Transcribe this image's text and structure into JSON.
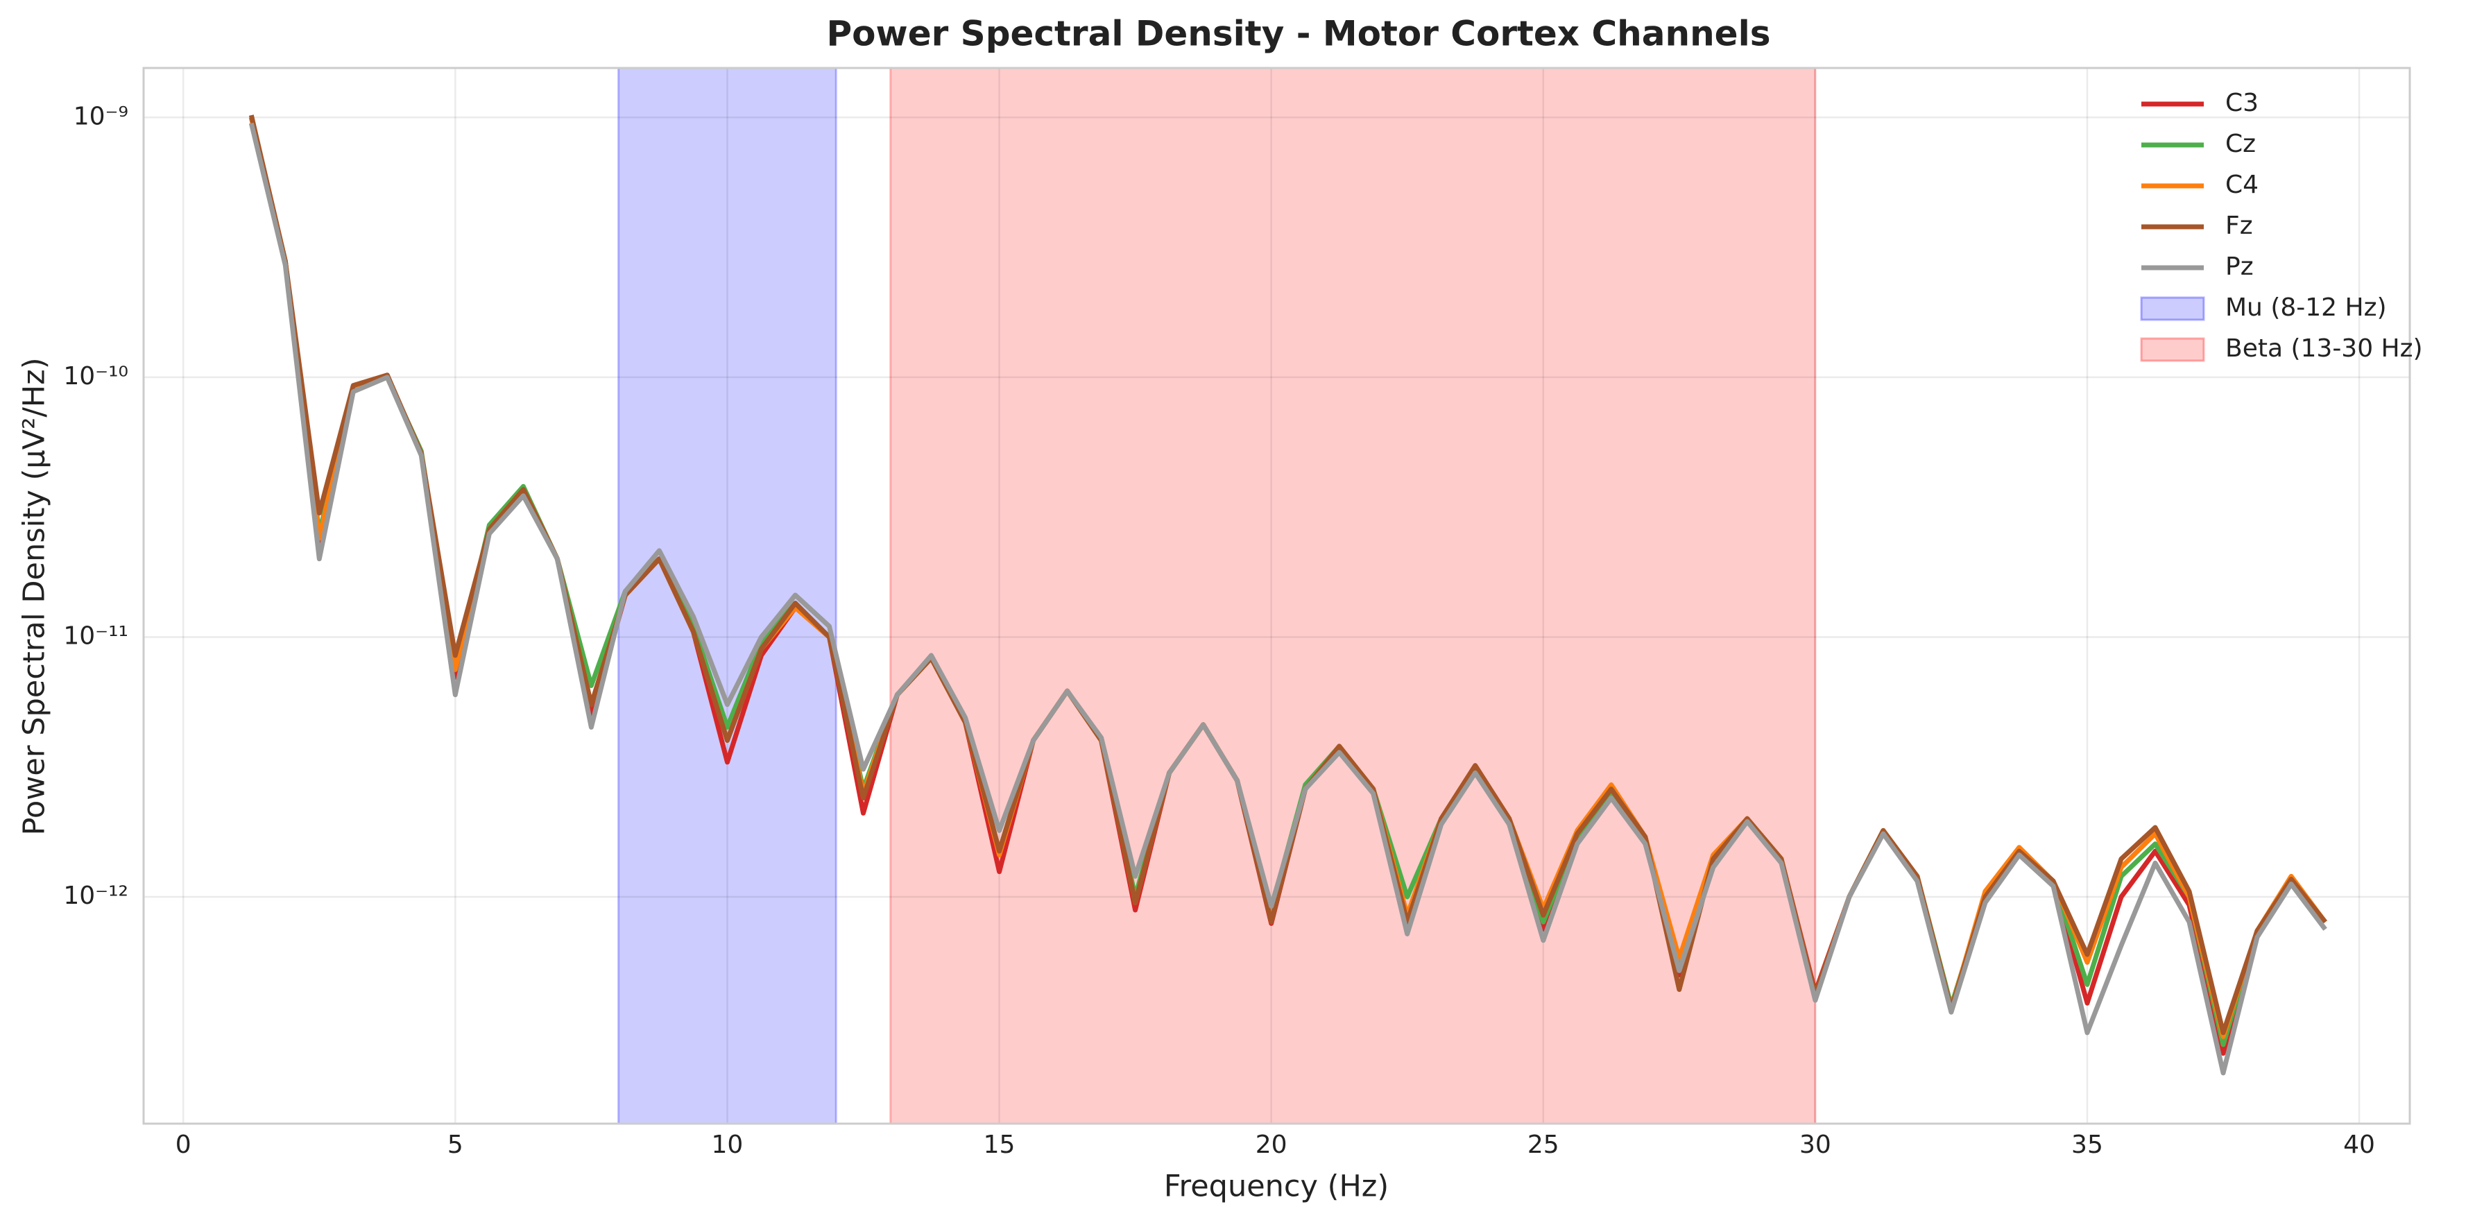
{
  "chart_data": {
    "type": "line",
    "title": "Power Spectral Density - Motor Cortex Channels",
    "xlabel": "Frequency (Hz)",
    "ylabel": "Power Spectral Density (µV²/Hz)",
    "log_y": true,
    "grid": true,
    "legend": "upper right",
    "xlim": [
      -0.73,
      40.93
    ],
    "ylim": [
      1.34e-13,
      1.55e-09
    ],
    "xticks": [
      0,
      5,
      10,
      15,
      20,
      25,
      30,
      35,
      40
    ],
    "yticks": [
      {
        "value": 1e-12,
        "label": "10⁻¹²"
      },
      {
        "value": 1e-11,
        "label": "10⁻¹¹"
      },
      {
        "value": 1e-10,
        "label": "10⁻¹⁰"
      },
      {
        "value": 1e-09,
        "label": "10⁻⁹"
      }
    ],
    "x": [
      1.25,
      1.875,
      2.5,
      3.125,
      3.75,
      4.375,
      5,
      5.625,
      6.25,
      6.875,
      7.5,
      8.125,
      8.75,
      9.375,
      10,
      10.625,
      11.25,
      11.875,
      12.5,
      13.125,
      13.75,
      14.375,
      15,
      15.625,
      16.25,
      16.875,
      17.5,
      18.125,
      18.75,
      19.375,
      20,
      20.625,
      21.25,
      21.875,
      22.5,
      23.125,
      23.75,
      24.375,
      25,
      25.625,
      26.25,
      26.875,
      27.5,
      28.125,
      28.75,
      29.375,
      30,
      30.625,
      31.25,
      31.875,
      32.5,
      33.125,
      33.75,
      34.375,
      35,
      35.625,
      36.25,
      36.875,
      37.5,
      38.125,
      38.75,
      39.375
    ],
    "series": [
      {
        "name": "C3",
        "color": "#d62728",
        "values": [
          1e-09,
          2.8e-10,
          2.1e-11,
          9.1e-11,
          1e-10,
          5.1e-11,
          7e-12,
          2.6e-11,
          3.7e-11,
          2e-11,
          5e-12,
          1.45e-11,
          2e-11,
          1.05e-11,
          3.3e-12,
          8.5e-12,
          1.3e-11,
          1e-11,
          2.1e-12,
          6e-12,
          8.3e-12,
          4.7e-12,
          1.25e-12,
          4e-12,
          6.2e-12,
          4e-12,
          8.9e-13,
          3e-12,
          4.6e-12,
          2.8e-12,
          7.9e-13,
          2.6e-12,
          3.8e-12,
          2.6e-12,
          8e-13,
          2e-12,
          3.2e-12,
          2e-12,
          7.5e-13,
          1.7e-12,
          2.6e-12,
          1.7e-12,
          5e-13,
          1.4e-12,
          2e-12,
          1.4e-12,
          4.3e-13,
          1e-12,
          1.8e-12,
          1.2e-12,
          3.7e-13,
          1e-12,
          1.5e-12,
          1.15e-12,
          3.9e-13,
          1e-12,
          1.5e-12,
          9.3e-13,
          2.5e-13,
          7.4e-13,
          1.17e-12,
          8e-13
        ]
      },
      {
        "name": "Cz",
        "color": "#4daf4a",
        "values": [
          1e-09,
          2.8e-10,
          2.5e-11,
          9.1e-11,
          1e-10,
          5.2e-11,
          7.5e-12,
          2.7e-11,
          3.8e-11,
          2e-11,
          6.5e-12,
          1.5e-11,
          2e-11,
          1.1e-11,
          4.5e-12,
          9.5e-12,
          1.35e-11,
          1e-11,
          2.6e-12,
          6e-12,
          8.3e-12,
          4.7e-12,
          1.5e-12,
          4e-12,
          6.2e-12,
          4e-12,
          1e-12,
          3e-12,
          4.6e-12,
          2.8e-12,
          9e-13,
          2.7e-12,
          3.8e-12,
          2.6e-12,
          1e-12,
          2e-12,
          3.1e-12,
          2e-12,
          8e-13,
          1.7e-12,
          2.5e-12,
          1.7e-12,
          5.5e-13,
          1.4e-12,
          2e-12,
          1.4e-12,
          4.1e-13,
          1e-12,
          1.8e-12,
          1.2e-12,
          3.8e-13,
          1e-12,
          1.5e-12,
          1.15e-12,
          4.6e-13,
          1.2e-12,
          1.6e-12,
          1e-12,
          2.7e-13,
          7.4e-13,
          1.17e-12,
          8e-13
        ]
      },
      {
        "name": "C4",
        "color": "#ff7f0e",
        "values": [
          1e-09,
          2.8e-10,
          2.4e-11,
          9.1e-11,
          1e-10,
          5.1e-11,
          7.5e-12,
          2.6e-11,
          3.7e-11,
          2e-11,
          5.5e-12,
          1.45e-11,
          2e-11,
          1.05e-11,
          4e-12,
          9e-12,
          1.3e-11,
          1e-11,
          2.5e-12,
          6e-12,
          8.3e-12,
          4.7e-12,
          1.45e-12,
          4e-12,
          6.2e-12,
          4e-12,
          9.5e-13,
          3e-12,
          4.6e-12,
          2.8e-12,
          8.5e-13,
          2.6e-12,
          3.8e-12,
          2.6e-12,
          8.5e-13,
          2e-12,
          3.2e-12,
          2e-12,
          9e-13,
          1.8e-12,
          2.7e-12,
          1.7e-12,
          5.8e-13,
          1.45e-12,
          2e-12,
          1.4e-12,
          4.2e-13,
          1e-12,
          1.8e-12,
          1.2e-12,
          3.7e-13,
          1.05e-12,
          1.55e-12,
          1.15e-12,
          5.6e-13,
          1.3e-12,
          1.75e-12,
          1e-12,
          2.9e-13,
          7.4e-13,
          1.2e-12,
          8e-13
        ]
      },
      {
        "name": "Fz",
        "color": "#a65628",
        "values": [
          1.02e-09,
          2.8e-10,
          3e-11,
          9.3e-11,
          1.02e-10,
          5.1e-11,
          8.5e-12,
          2.6e-11,
          3.7e-11,
          2e-11,
          5.5e-12,
          1.45e-11,
          2e-11,
          1.05e-11,
          4e-12,
          9e-12,
          1.35e-11,
          1e-11,
          2.4e-12,
          6e-12,
          8.3e-12,
          4.7e-12,
          1.5e-12,
          4e-12,
          6.2e-12,
          4e-12,
          9.5e-13,
          3e-12,
          4.6e-12,
          2.8e-12,
          8e-13,
          2.6e-12,
          3.8e-12,
          2.6e-12,
          8e-13,
          2e-12,
          3.2e-12,
          2e-12,
          8.5e-13,
          1.75e-12,
          2.6e-12,
          1.7e-12,
          4.4e-13,
          1.4e-12,
          2e-12,
          1.4e-12,
          4.2e-13,
          1e-12,
          1.8e-12,
          1.2e-12,
          3.7e-13,
          1e-12,
          1.5e-12,
          1.15e-12,
          6e-13,
          1.4e-12,
          1.85e-12,
          1.05e-12,
          3e-13,
          7.4e-13,
          1.17e-12,
          8e-13
        ]
      },
      {
        "name": "Pz",
        "color": "#999999",
        "values": [
          9.5e-10,
          2.7e-10,
          2e-11,
          8.8e-11,
          1e-10,
          5e-11,
          6e-12,
          2.5e-11,
          3.5e-11,
          2e-11,
          4.5e-12,
          1.5e-11,
          2.15e-11,
          1.2e-11,
          5.5e-12,
          1e-11,
          1.45e-11,
          1.1e-11,
          3.1e-12,
          6e-12,
          8.5e-12,
          4.9e-12,
          1.8e-12,
          4e-12,
          6.2e-12,
          4.1e-12,
          1.2e-12,
          3e-12,
          4.6e-12,
          2.8e-12,
          9.2e-13,
          2.6e-12,
          3.6e-12,
          2.5e-12,
          7.2e-13,
          1.9e-12,
          3e-12,
          1.9e-12,
          6.8e-13,
          1.6e-12,
          2.4e-12,
          1.6e-12,
          5.2e-13,
          1.3e-12,
          1.95e-12,
          1.35e-12,
          4e-13,
          1e-12,
          1.75e-12,
          1.15e-12,
          3.6e-13,
          9.5e-13,
          1.45e-12,
          1.1e-12,
          3e-13,
          6.5e-13,
          1.35e-12,
          8e-13,
          2.1e-13,
          7e-13,
          1.12e-12,
          7.5e-13
        ]
      }
    ],
    "spans": [
      {
        "name": "Mu (8-12 Hz)",
        "color": "#0000ff",
        "start": 8,
        "end": 12
      },
      {
        "name": "Beta (13-30 Hz)",
        "color": "#ff0000",
        "start": 13,
        "end": 30
      }
    ]
  }
}
